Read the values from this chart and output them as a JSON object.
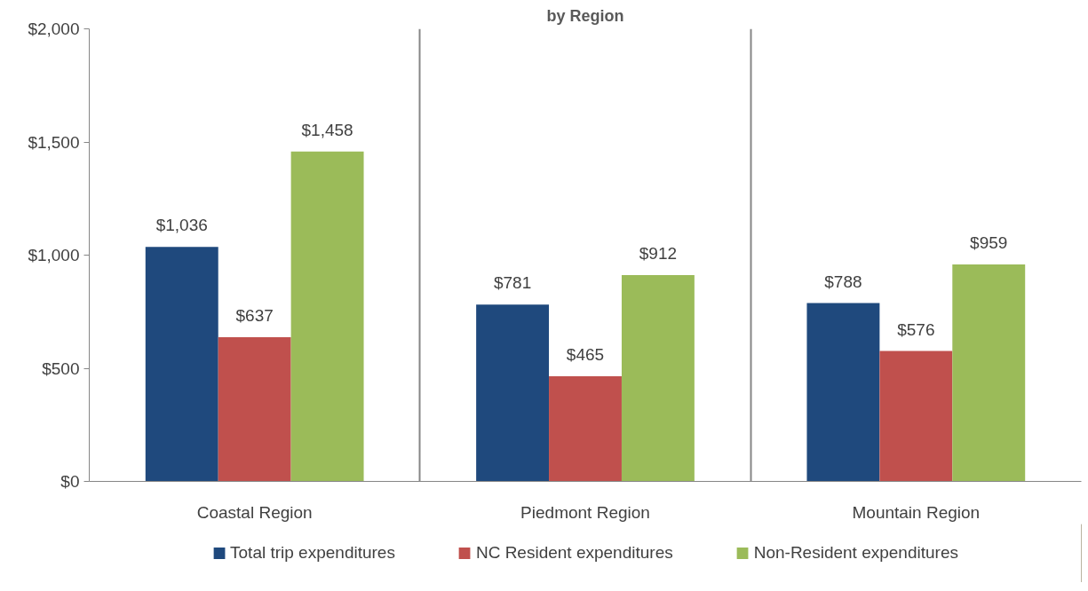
{
  "chart_data": {
    "type": "bar",
    "title": "by Region",
    "categories": [
      "Coastal Region",
      "Piedmont Region",
      "Mountain Region"
    ],
    "series": [
      {
        "name": "Total trip expenditures",
        "color": "#1f497d",
        "values": [
          1036,
          781,
          788
        ],
        "value_labels": [
          "$1,036",
          "$781",
          "$788"
        ]
      },
      {
        "name": "NC Resident expenditures",
        "color": "#c0504d",
        "values": [
          637,
          465,
          576
        ],
        "value_labels": [
          "$637",
          "$465",
          "$576"
        ]
      },
      {
        "name": "Non-Resident expenditures",
        "color": "#9bbb59",
        "values": [
          1458,
          912,
          959
        ],
        "value_labels": [
          "$1,458",
          "$912",
          "$959"
        ]
      }
    ],
    "ylim": [
      0,
      2000
    ],
    "yticks": [
      {
        "value": 0,
        "label": "$0"
      },
      {
        "value": 500,
        "label": "$500"
      },
      {
        "value": 1000,
        "label": "$1,000"
      },
      {
        "value": 1500,
        "label": "$1,500"
      },
      {
        "value": 2000,
        "label": "$2,000"
      }
    ],
    "grid": "x",
    "legend": "bottom"
  }
}
